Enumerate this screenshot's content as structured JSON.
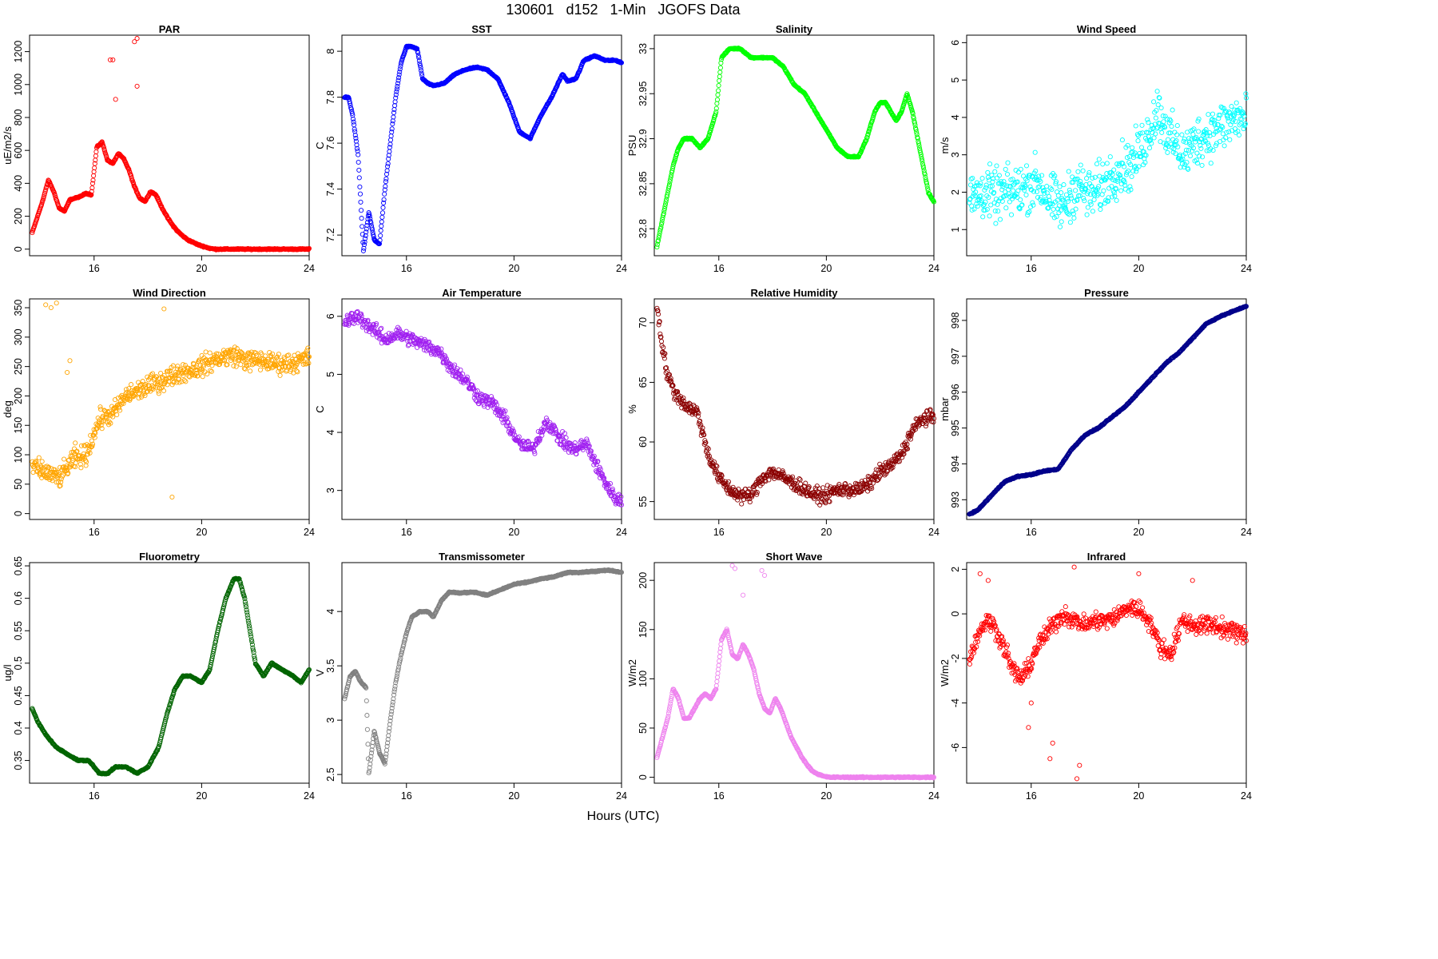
{
  "title": "130601   d152   1-Min   JGOFS Data",
  "xlabel": "Hours (UTC)",
  "chart_data": [
    {
      "id": "par",
      "type": "scatter",
      "title": "PAR",
      "ylabel": "uE/m2/s",
      "color": "#ff0000",
      "xlim": [
        13.6,
        24
      ],
      "xticks": [
        16,
        20,
        24
      ],
      "ylim": [
        -40,
        1300
      ],
      "yticks": [
        0,
        200,
        400,
        600,
        800,
        1000,
        1200
      ],
      "x": [
        13.7,
        13.9,
        14.1,
        14.3,
        14.5,
        14.7,
        14.9,
        15.1,
        15.3,
        15.5,
        15.7,
        15.9,
        16.1,
        16.3,
        16.5,
        16.7,
        16.9,
        17.1,
        17.3,
        17.5,
        17.7,
        17.9,
        18.1,
        18.3,
        18.5,
        18.7,
        18.9,
        19.1,
        19.3,
        19.5,
        19.7,
        19.9,
        20.1,
        20.3,
        20.5,
        21,
        21.5,
        22,
        22.5,
        23,
        23.5,
        24
      ],
      "y": [
        100,
        200,
        300,
        420,
        350,
        250,
        230,
        300,
        310,
        320,
        340,
        330,
        620,
        650,
        540,
        520,
        580,
        550,
        480,
        380,
        310,
        290,
        350,
        330,
        260,
        200,
        150,
        110,
        80,
        55,
        40,
        25,
        15,
        5,
        0,
        0,
        0,
        0,
        0,
        0,
        0,
        0
      ],
      "extra_x": [
        16.6,
        16.7,
        17.5,
        17.6,
        17.6,
        16.8
      ],
      "extra_y": [
        1150,
        1150,
        1260,
        1280,
        990,
        910
      ]
    },
    {
      "id": "sst",
      "type": "scatter",
      "title": "SST",
      "ylabel": "C",
      "color": "#0000ff",
      "xlim": [
        13.6,
        24
      ],
      "xticks": [
        16,
        20,
        24
      ],
      "ylim": [
        7.11,
        8.07
      ],
      "yticks": [
        7.2,
        7.4,
        7.6,
        7.8,
        8.0
      ],
      "x": [
        13.7,
        13.85,
        14.0,
        14.2,
        14.4,
        14.6,
        14.8,
        15.0,
        15.2,
        15.4,
        15.6,
        15.8,
        16.0,
        16.2,
        16.4,
        16.6,
        16.8,
        17.0,
        17.4,
        17.8,
        18.2,
        18.6,
        19.0,
        19.4,
        19.8,
        20.2,
        20.6,
        21.0,
        21.4,
        21.8,
        22.0,
        22.3,
        22.6,
        23.0,
        23.4,
        23.8,
        24.0
      ],
      "y": [
        7.8,
        7.8,
        7.72,
        7.55,
        7.13,
        7.3,
        7.18,
        7.16,
        7.4,
        7.6,
        7.8,
        7.95,
        8.02,
        8.02,
        8.01,
        7.88,
        7.86,
        7.85,
        7.86,
        7.9,
        7.92,
        7.93,
        7.92,
        7.88,
        7.78,
        7.65,
        7.62,
        7.72,
        7.8,
        7.9,
        7.87,
        7.88,
        7.96,
        7.98,
        7.96,
        7.96,
        7.95
      ]
    },
    {
      "id": "salinity",
      "type": "scatter",
      "title": "Salinity",
      "ylabel": "PSU",
      "color": "#00ff00",
      "xlim": [
        13.6,
        24
      ],
      "xticks": [
        16,
        20,
        24
      ],
      "ylim": [
        32.77,
        33.015
      ],
      "yticks": [
        32.8,
        32.85,
        32.9,
        32.95,
        33.0
      ],
      "x": [
        13.7,
        13.9,
        14.1,
        14.3,
        14.5,
        14.7,
        15.0,
        15.3,
        15.6,
        15.9,
        16.1,
        16.4,
        16.8,
        17.2,
        17.6,
        18.0,
        18.4,
        18.8,
        19.2,
        19.6,
        20.0,
        20.4,
        20.8,
        21.2,
        21.5,
        21.8,
        22.0,
        22.2,
        22.4,
        22.6,
        22.8,
        23.0,
        23.2,
        23.4,
        23.6,
        23.8,
        24.0
      ],
      "y": [
        32.78,
        32.81,
        32.84,
        32.87,
        32.89,
        32.9,
        32.9,
        32.89,
        32.9,
        32.93,
        32.99,
        33.0,
        33.0,
        32.99,
        32.99,
        32.99,
        32.98,
        32.96,
        32.95,
        32.93,
        32.91,
        32.89,
        32.88,
        32.88,
        32.9,
        32.93,
        32.94,
        32.94,
        32.93,
        32.92,
        32.93,
        32.95,
        32.93,
        32.9,
        32.87,
        32.84,
        32.83
      ]
    },
    {
      "id": "wind_speed",
      "type": "scatter",
      "title": "Wind Speed",
      "ylabel": "m/s",
      "color": "#00ffff",
      "xlim": [
        13.6,
        24
      ],
      "xticks": [
        16,
        20,
        24
      ],
      "ylim": [
        0.3,
        6.2
      ],
      "yticks": [
        1,
        2,
        3,
        4,
        5,
        6
      ],
      "x": [
        13.7,
        14.2,
        14.7,
        15.2,
        15.7,
        16.2,
        16.7,
        17.2,
        17.7,
        18.2,
        18.7,
        19.2,
        19.7,
        20.2,
        20.7,
        21.2,
        21.7,
        22.2,
        22.7,
        23.2,
        23.7,
        24.0
      ],
      "y": [
        1.8,
        2.0,
        1.9,
        2.0,
        2.1,
        2.3,
        1.8,
        1.6,
        2.2,
        1.9,
        2.2,
        2.6,
        2.7,
        3.3,
        4.2,
        3.4,
        3.0,
        3.4,
        3.6,
        3.8,
        4.0,
        3.9
      ],
      "scatter": 1.0
    },
    {
      "id": "wind_direction",
      "type": "scatter",
      "title": "Wind Direction",
      "ylabel": "deg",
      "color": "#ffa500",
      "xlim": [
        13.6,
        24
      ],
      "xticks": [
        16,
        20,
        24
      ],
      "ylim": [
        -10,
        365
      ],
      "yticks": [
        0,
        50,
        100,
        150,
        200,
        250,
        300,
        350
      ],
      "x": [
        13.7,
        14.2,
        14.7,
        15.2,
        15.7,
        16.2,
        16.7,
        17.2,
        17.7,
        18.2,
        18.7,
        19.2,
        19.7,
        20.2,
        20.7,
        21.2,
        21.7,
        22.2,
        22.7,
        23.2,
        23.7,
        24.0
      ],
      "y": [
        80,
        70,
        60,
        90,
        100,
        160,
        170,
        200,
        210,
        220,
        230,
        240,
        245,
        255,
        265,
        270,
        260,
        260,
        255,
        255,
        260,
        265
      ],
      "scatter": 25,
      "extra_x": [
        14.2,
        14.4,
        14.6,
        15.0,
        15.1,
        15.3,
        18.6,
        18.9
      ],
      "extra_y": [
        355,
        350,
        358,
        240,
        260,
        120,
        348,
        28
      ]
    },
    {
      "id": "air_temperature",
      "type": "scatter",
      "title": "Air Temperature",
      "ylabel": "C",
      "color": "#a020f0",
      "xlim": [
        13.6,
        24
      ],
      "xticks": [
        16,
        20,
        24
      ],
      "ylim": [
        2.5,
        6.3
      ],
      "yticks": [
        3,
        4,
        5,
        6
      ],
      "x": [
        13.7,
        14.2,
        14.7,
        15.2,
        15.7,
        16.2,
        16.7,
        17.2,
        17.7,
        18.2,
        18.7,
        19.2,
        19.7,
        20.2,
        20.7,
        21.2,
        21.7,
        22.2,
        22.7,
        23.2,
        23.7,
        24.0
      ],
      "y": [
        5.9,
        6.0,
        5.8,
        5.6,
        5.7,
        5.6,
        5.5,
        5.4,
        5.1,
        4.9,
        4.6,
        4.5,
        4.2,
        3.8,
        3.7,
        4.2,
        3.9,
        3.7,
        3.8,
        3.3,
        2.9,
        2.8
      ],
      "scatter": 0.18
    },
    {
      "id": "relative_humidity",
      "type": "scatter",
      "title": "Relative Humidity",
      "ylabel": "%",
      "color": "#8b0000",
      "xlim": [
        13.6,
        24
      ],
      "xticks": [
        16,
        20,
        24
      ],
      "ylim": [
        53.5,
        72
      ],
      "yticks": [
        55,
        60,
        65,
        70
      ],
      "x": [
        13.7,
        13.9,
        14.1,
        14.4,
        14.8,
        15.2,
        15.6,
        16.0,
        16.4,
        16.8,
        17.2,
        17.6,
        18.0,
        18.4,
        18.8,
        19.2,
        19.6,
        20.0,
        20.4,
        20.8,
        21.2,
        21.6,
        22.0,
        22.4,
        22.8,
        23.2,
        23.6,
        24.0
      ],
      "y": [
        71.5,
        68,
        65.5,
        64,
        63,
        62.5,
        59,
        57,
        56,
        55.5,
        55.5,
        57,
        57.5,
        57,
        56.5,
        56,
        55.5,
        55.5,
        56,
        56,
        56,
        56.5,
        57.5,
        58,
        59,
        61,
        62,
        62
      ],
      "scatter": 0.9
    },
    {
      "id": "pressure",
      "type": "scatter",
      "title": "Pressure",
      "ylabel": "mbar",
      "color": "#00008b",
      "xlim": [
        13.6,
        24
      ],
      "xticks": [
        16,
        20,
        24
      ],
      "ylim": [
        992.45,
        998.6
      ],
      "yticks": [
        993,
        994,
        995,
        996,
        997,
        998
      ],
      "x": [
        13.7,
        14.0,
        14.5,
        15.0,
        15.5,
        16.0,
        16.5,
        17.0,
        17.5,
        18.0,
        18.5,
        19.0,
        19.5,
        20.0,
        20.5,
        21.0,
        21.5,
        22.0,
        22.5,
        23.0,
        23.5,
        24.0
      ],
      "y": [
        992.6,
        992.7,
        993.1,
        993.5,
        993.65,
        993.7,
        993.8,
        993.85,
        994.4,
        994.8,
        995.0,
        995.3,
        995.6,
        996.0,
        996.4,
        996.8,
        997.1,
        997.5,
        997.9,
        998.1,
        998.25,
        998.4
      ]
    },
    {
      "id": "fluorometry",
      "type": "scatter",
      "title": "Fluorometry",
      "ylabel": "ug/l",
      "color": "#006400",
      "xlim": [
        13.6,
        24
      ],
      "xticks": [
        16,
        20,
        24
      ],
      "ylim": [
        0.315,
        0.655
      ],
      "yticks": [
        0.35,
        0.4,
        0.45,
        0.5,
        0.55,
        0.6,
        0.65
      ],
      "x": [
        13.7,
        13.9,
        14.2,
        14.6,
        15.0,
        15.4,
        15.8,
        16.2,
        16.5,
        16.8,
        17.2,
        17.6,
        18.0,
        18.4,
        18.7,
        19.0,
        19.3,
        19.6,
        20.0,
        20.3,
        20.6,
        20.9,
        21.2,
        21.4,
        21.6,
        21.8,
        22.0,
        22.3,
        22.6,
        23.0,
        23.4,
        23.7,
        24.0
      ],
      "y": [
        0.43,
        0.41,
        0.39,
        0.37,
        0.36,
        0.35,
        0.35,
        0.33,
        0.33,
        0.34,
        0.34,
        0.33,
        0.34,
        0.37,
        0.42,
        0.46,
        0.48,
        0.48,
        0.47,
        0.49,
        0.55,
        0.6,
        0.63,
        0.63,
        0.6,
        0.55,
        0.5,
        0.48,
        0.5,
        0.49,
        0.48,
        0.47,
        0.49
      ]
    },
    {
      "id": "transmissometer",
      "type": "scatter",
      "title": "Transmissometer",
      "ylabel": "V",
      "color": "#808080",
      "xlim": [
        13.6,
        24
      ],
      "xticks": [
        16,
        20,
        24
      ],
      "ylim": [
        2.42,
        4.45
      ],
      "yticks": [
        2.5,
        3.0,
        3.5,
        4.0
      ],
      "x": [
        13.7,
        13.9,
        14.1,
        14.3,
        14.5,
        14.6,
        14.8,
        15.0,
        15.2,
        15.4,
        15.6,
        15.8,
        16.0,
        16.2,
        16.5,
        16.8,
        17.0,
        17.3,
        17.6,
        18.0,
        18.5,
        19.0,
        19.5,
        20.0,
        20.5,
        21.0,
        21.5,
        22.0,
        22.5,
        23.0,
        23.5,
        24.0
      ],
      "y": [
        3.2,
        3.4,
        3.45,
        3.35,
        3.3,
        2.5,
        2.9,
        2.7,
        2.6,
        3.0,
        3.35,
        3.6,
        3.8,
        3.95,
        4.0,
        4.0,
        3.95,
        4.1,
        4.18,
        4.17,
        4.18,
        4.15,
        4.2,
        4.25,
        4.27,
        4.3,
        4.32,
        4.36,
        4.36,
        4.37,
        4.38,
        4.36
      ]
    },
    {
      "id": "short_wave",
      "type": "scatter",
      "title": "Short Wave",
      "ylabel": "W/m2",
      "color": "#ee82ee",
      "xlim": [
        13.6,
        24
      ],
      "xticks": [
        16,
        20,
        24
      ],
      "ylim": [
        -6,
        218
      ],
      "yticks": [
        0,
        50,
        100,
        150,
        200
      ],
      "x": [
        13.7,
        13.9,
        14.1,
        14.3,
        14.5,
        14.7,
        14.9,
        15.1,
        15.3,
        15.5,
        15.7,
        15.9,
        16.1,
        16.3,
        16.5,
        16.7,
        16.9,
        17.1,
        17.3,
        17.5,
        17.7,
        17.9,
        18.1,
        18.3,
        18.5,
        18.7,
        18.9,
        19.1,
        19.3,
        19.5,
        19.7,
        19.9,
        20.1,
        20.3,
        20.5,
        21,
        21.5,
        22,
        22.5,
        23,
        23.5,
        24
      ],
      "y": [
        20,
        40,
        60,
        90,
        80,
        60,
        60,
        70,
        80,
        85,
        80,
        90,
        140,
        150,
        125,
        120,
        135,
        125,
        110,
        85,
        70,
        65,
        80,
        70,
        55,
        40,
        30,
        20,
        12,
        6,
        3,
        1,
        0,
        0,
        0,
        0,
        0,
        0,
        0,
        0,
        0,
        0
      ],
      "extra_x": [
        16.5,
        16.6,
        17.6,
        17.7,
        16.9
      ],
      "extra_y": [
        215,
        212,
        210,
        205,
        185
      ]
    },
    {
      "id": "infrared",
      "type": "scatter",
      "title": "Infrared",
      "ylabel": "W/m2",
      "color": "#ff0000",
      "xlim": [
        13.6,
        24
      ],
      "xticks": [
        16,
        20,
        24
      ],
      "ylim": [
        -7.6,
        2.3
      ],
      "yticks": [
        -6,
        -4,
        -2,
        0,
        2
      ],
      "x": [
        13.7,
        14.0,
        14.3,
        14.6,
        15.0,
        15.3,
        15.6,
        15.9,
        16.2,
        16.5,
        16.8,
        17.2,
        17.6,
        18.0,
        18.4,
        18.8,
        19.2,
        19.6,
        20.0,
        20.4,
        20.8,
        21.2,
        21.6,
        22.0,
        22.4,
        22.8,
        23.2,
        23.6,
        24.0
      ],
      "y": [
        -2.0,
        -1.0,
        -0.3,
        -0.5,
        -1.5,
        -2.5,
        -2.9,
        -2.5,
        -1.5,
        -1.0,
        -0.5,
        0.0,
        -0.3,
        -0.5,
        -0.3,
        -0.3,
        -0.1,
        0.3,
        0.2,
        -0.3,
        -1.5,
        -1.8,
        -0.3,
        -0.5,
        -0.5,
        -0.5,
        -0.7,
        -0.8,
        -1.0
      ],
      "scatter": 0.6,
      "extra_x": [
        14.1,
        14.4,
        15.9,
        16.0,
        16.7,
        16.8,
        17.6,
        17.7,
        17.8,
        20.0,
        22.0
      ],
      "extra_y": [
        1.8,
        1.5,
        -5.1,
        -4.0,
        -6.5,
        -5.8,
        2.1,
        -7.4,
        -6.8,
        1.8,
        1.5
      ]
    }
  ]
}
